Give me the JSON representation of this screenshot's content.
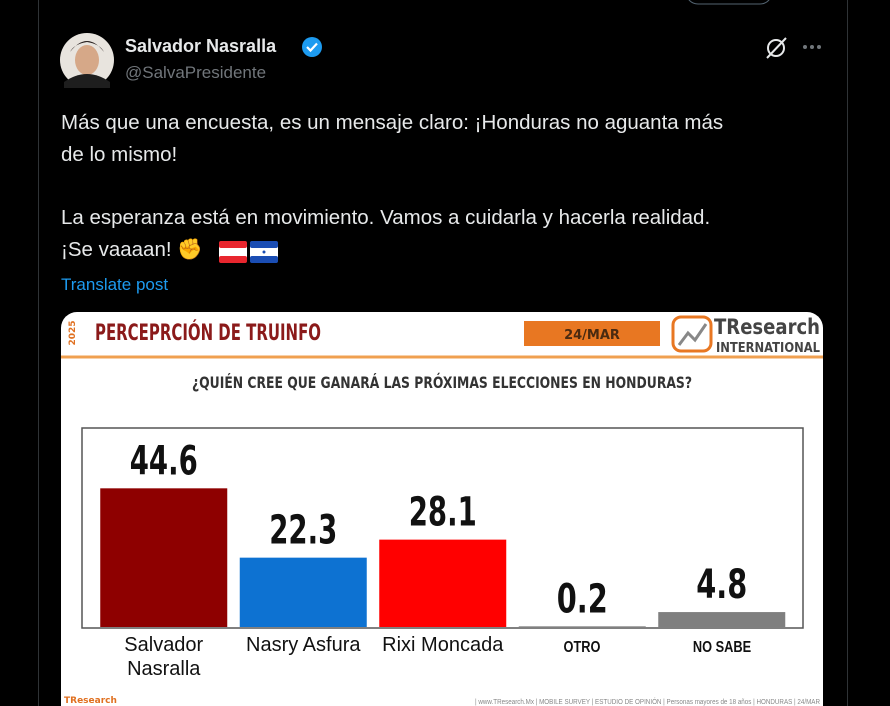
{
  "author": {
    "name": "Salvador Nasralla",
    "handle": "@SalvaPresidente"
  },
  "post": {
    "paragraphs": [
      [
        "Más que una encuesta, es un mensaje claro: ¡Honduras no aguanta más",
        "de lo mismo!"
      ],
      [
        "La esperanza está en movimiento. Vamos a cuidarla y hacerla realidad.",
        "¡Se vaaaan! ✊"
      ]
    ],
    "translate": "Translate post"
  },
  "chart_data": {
    "type": "bar",
    "title": "PERCEPRCIÓN DE TRUINFO",
    "year": "2025",
    "date": "24/MAR",
    "brand": "TResearch",
    "brand_sub": "INTERNATIONAL",
    "subtitle": "¿QUIÉN CREE QUE GANARÁ LAS PRÓXIMAS ELECCIONES EN HONDURAS?",
    "categories": [
      "Salvador Nasralla",
      "Nasry Asfura",
      "Rixi Moncada",
      "OTRO",
      "NO SABE"
    ],
    "values": [
      44.6,
      22.3,
      28.1,
      0.2,
      4.8
    ],
    "colors": [
      "#8e0000",
      "#0d72d2",
      "#ff0000",
      "#777777",
      "#7f7f7f"
    ],
    "ylim": [
      0,
      64
    ],
    "footer": "| www.TResearch.Mx | MOBILE SURVEY | ESTUDIO DE OPINIÓN | Personas mayores de 18 años | HONDURAS | 24/MAR"
  }
}
